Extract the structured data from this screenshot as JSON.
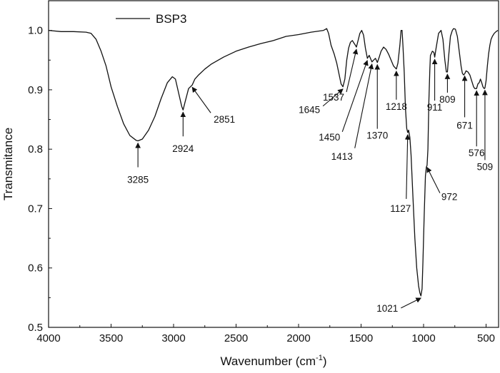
{
  "chart_data": {
    "type": "line",
    "xlabel": "Wavenumber (cm",
    "xlabel_sup": "-1",
    "xlabel_close": ")",
    "ylabel": "Transmitance",
    "xlim": [
      4000,
      400
    ],
    "ylim": [
      0.5,
      1.05
    ],
    "x_reversed": true,
    "grid": false,
    "legend_position": "top-left",
    "x_ticks": [
      4000,
      3500,
      3000,
      2500,
      2000,
      1500,
      1000,
      500
    ],
    "x_tick_labels": [
      "4000",
      "3500",
      "3000",
      "2500",
      "2000",
      "1500",
      "1000",
      "500"
    ],
    "y_ticks": [
      0.5,
      0.6,
      0.7,
      0.8,
      0.9,
      1.0
    ],
    "y_tick_labels": [
      "0.5",
      "0.6",
      "0.7",
      "0.8",
      "0.9",
      "1.0"
    ],
    "series": [
      {
        "name": "BSP3",
        "color": "#111111",
        "points": [
          [
            4000,
            1.0
          ],
          [
            3900,
            0.998
          ],
          [
            3800,
            0.998
          ],
          [
            3700,
            0.997
          ],
          [
            3660,
            0.995
          ],
          [
            3620,
            0.985
          ],
          [
            3580,
            0.965
          ],
          [
            3540,
            0.94
          ],
          [
            3500,
            0.905
          ],
          [
            3450,
            0.872
          ],
          [
            3400,
            0.843
          ],
          [
            3350,
            0.823
          ],
          [
            3300,
            0.815
          ],
          [
            3285,
            0.814
          ],
          [
            3250,
            0.817
          ],
          [
            3200,
            0.832
          ],
          [
            3150,
            0.855
          ],
          [
            3100,
            0.885
          ],
          [
            3050,
            0.912
          ],
          [
            3010,
            0.922
          ],
          [
            2985,
            0.918
          ],
          [
            2960,
            0.895
          ],
          [
            2935,
            0.872
          ],
          [
            2924,
            0.866
          ],
          [
            2910,
            0.878
          ],
          [
            2880,
            0.902
          ],
          [
            2851,
            0.908
          ],
          [
            2830,
            0.918
          ],
          [
            2800,
            0.925
          ],
          [
            2750,
            0.935
          ],
          [
            2700,
            0.943
          ],
          [
            2600,
            0.955
          ],
          [
            2500,
            0.965
          ],
          [
            2400,
            0.972
          ],
          [
            2300,
            0.978
          ],
          [
            2200,
            0.983
          ],
          [
            2100,
            0.99
          ],
          [
            2000,
            0.993
          ],
          [
            1900,
            0.997
          ],
          [
            1800,
            1.0
          ],
          [
            1775,
            1.003
          ],
          [
            1760,
            0.995
          ],
          [
            1740,
            0.975
          ],
          [
            1715,
            0.96
          ],
          [
            1695,
            0.945
          ],
          [
            1675,
            0.925
          ],
          [
            1660,
            0.91
          ],
          [
            1645,
            0.905
          ],
          [
            1630,
            0.918
          ],
          [
            1615,
            0.95
          ],
          [
            1600,
            0.97
          ],
          [
            1585,
            0.98
          ],
          [
            1570,
            0.983
          ],
          [
            1555,
            0.978
          ],
          [
            1545,
            0.975
          ],
          [
            1537,
            0.972
          ],
          [
            1525,
            0.982
          ],
          [
            1510,
            0.995
          ],
          [
            1495,
            1.0
          ],
          [
            1480,
            0.992
          ],
          [
            1465,
            0.97
          ],
          [
            1450,
            0.953
          ],
          [
            1435,
            0.958
          ],
          [
            1425,
            0.953
          ],
          [
            1413,
            0.947
          ],
          [
            1400,
            0.95
          ],
          [
            1385,
            0.953
          ],
          [
            1370,
            0.946
          ],
          [
            1355,
            0.955
          ],
          [
            1340,
            0.965
          ],
          [
            1320,
            0.972
          ],
          [
            1300,
            0.968
          ],
          [
            1280,
            0.96
          ],
          [
            1260,
            0.95
          ],
          [
            1240,
            0.94
          ],
          [
            1218,
            0.935
          ],
          [
            1205,
            0.945
          ],
          [
            1190,
            0.975
          ],
          [
            1180,
            1.0
          ],
          [
            1172,
            1.0
          ],
          [
            1165,
            0.975
          ],
          [
            1155,
            0.93
          ],
          [
            1145,
            0.87
          ],
          [
            1135,
            0.835
          ],
          [
            1127,
            0.828
          ],
          [
            1120,
            0.832
          ],
          [
            1110,
            0.82
          ],
          [
            1100,
            0.79
          ],
          [
            1085,
            0.72
          ],
          [
            1070,
            0.65
          ],
          [
            1055,
            0.6
          ],
          [
            1040,
            0.57
          ],
          [
            1030,
            0.558
          ],
          [
            1021,
            0.553
          ],
          [
            1012,
            0.565
          ],
          [
            1005,
            0.61
          ],
          [
            995,
            0.69
          ],
          [
            985,
            0.755
          ],
          [
            978,
            0.77
          ],
          [
            972,
            0.773
          ],
          [
            965,
            0.8
          ],
          [
            958,
            0.88
          ],
          [
            950,
            0.935
          ],
          [
            945,
            0.958
          ],
          [
            940,
            0.96
          ],
          [
            930,
            0.965
          ],
          [
            918,
            0.963
          ],
          [
            911,
            0.955
          ],
          [
            900,
            0.97
          ],
          [
            880,
            0.995
          ],
          [
            860,
            1.0
          ],
          [
            845,
            0.985
          ],
          [
            830,
            0.95
          ],
          [
            818,
            0.93
          ],
          [
            809,
            0.93
          ],
          [
            800,
            0.955
          ],
          [
            785,
            0.99
          ],
          [
            770,
            1.0
          ],
          [
            760,
            1.003
          ],
          [
            745,
            1.002
          ],
          [
            730,
            0.99
          ],
          [
            715,
            0.965
          ],
          [
            700,
            0.94
          ],
          [
            690,
            0.928
          ],
          [
            680,
            0.925
          ],
          [
            671,
            0.927
          ],
          [
            660,
            0.932
          ],
          [
            645,
            0.93
          ],
          [
            630,
            0.925
          ],
          [
            615,
            0.915
          ],
          [
            600,
            0.905
          ],
          [
            590,
            0.902
          ],
          [
            576,
            0.902
          ],
          [
            565,
            0.91
          ],
          [
            555,
            0.912
          ],
          [
            545,
            0.918
          ],
          [
            535,
            0.912
          ],
          [
            525,
            0.905
          ],
          [
            515,
            0.902
          ],
          [
            509,
            0.903
          ],
          [
            500,
            0.915
          ],
          [
            490,
            0.94
          ],
          [
            480,
            0.96
          ],
          [
            470,
            0.975
          ],
          [
            460,
            0.985
          ],
          [
            450,
            0.99
          ],
          [
            435,
            0.995
          ],
          [
            420,
            0.998
          ],
          [
            405,
            1.0
          ]
        ]
      }
    ],
    "annotations": [
      {
        "text": "3285",
        "x": 3285,
        "y": 0.814
      },
      {
        "text": "2924",
        "x": 2924,
        "y": 0.866
      },
      {
        "text": "2851",
        "x": 2851,
        "y": 0.908
      },
      {
        "text": "1645",
        "x": 1645,
        "y": 0.905
      },
      {
        "text": "1537",
        "x": 1537,
        "y": 0.972
      },
      {
        "text": "1450",
        "x": 1450,
        "y": 0.953
      },
      {
        "text": "1413",
        "x": 1413,
        "y": 0.947
      },
      {
        "text": "1370",
        "x": 1370,
        "y": 0.946
      },
      {
        "text": "1218",
        "x": 1218,
        "y": 0.935
      },
      {
        "text": "1127",
        "x": 1127,
        "y": 0.828
      },
      {
        "text": "1021",
        "x": 1021,
        "y": 0.553
      },
      {
        "text": "972",
        "x": 972,
        "y": 0.773
      },
      {
        "text": "911",
        "x": 911,
        "y": 0.955
      },
      {
        "text": "809",
        "x": 809,
        "y": 0.93
      },
      {
        "text": "671",
        "x": 671,
        "y": 0.927
      },
      {
        "text": "576",
        "x": 576,
        "y": 0.902
      },
      {
        "text": "509",
        "x": 509,
        "y": 0.903
      }
    ]
  }
}
